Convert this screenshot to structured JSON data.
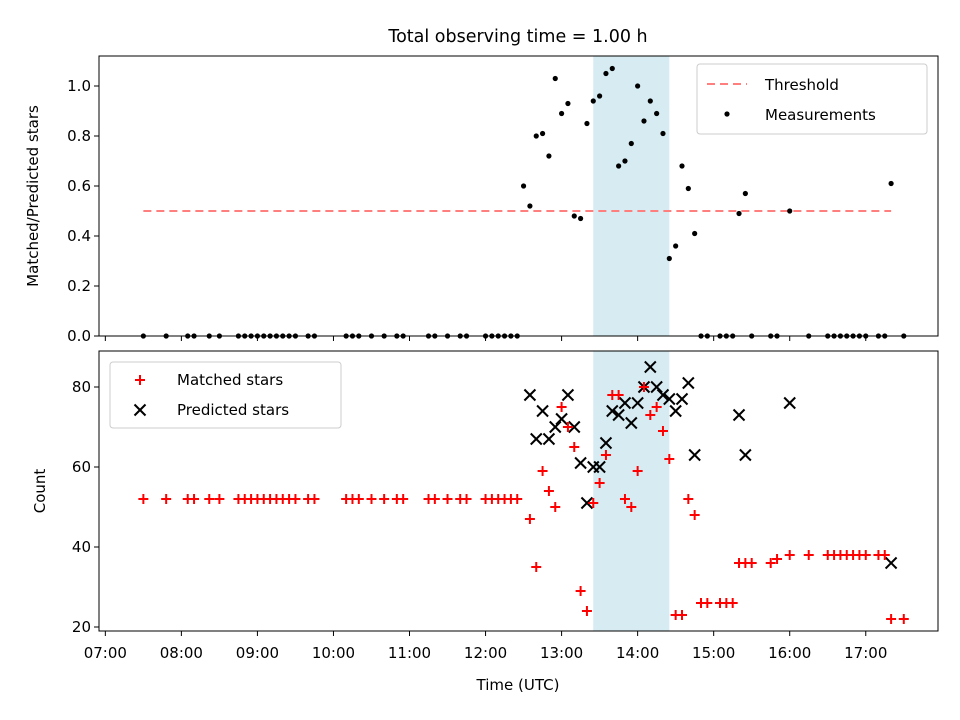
{
  "title": "Total observing time = 1.00 h",
  "colors": {
    "threshold": "#ff7f7f",
    "measurements": "#000000",
    "matched": "#ff0000",
    "predicted": "#000000",
    "highlight_band": "#add8e6"
  },
  "chart_data": [
    {
      "type": "scatter",
      "ylabel": "Matched/Predicted stars",
      "xlabel": "",
      "ylim": [
        0.0,
        1.12
      ],
      "yticks": [
        "0.0",
        "0.2",
        "0.4",
        "0.6",
        "0.8",
        "1.0"
      ],
      "legend": {
        "placement": "top-right",
        "entries": [
          "Threshold",
          "Measurements"
        ]
      },
      "highlight_span": [
        "13:25",
        "14:25"
      ],
      "threshold": {
        "name": "Threshold",
        "value": 0.5,
        "x_range": [
          "07:30",
          "17:20"
        ]
      },
      "series": [
        {
          "name": "Measurements",
          "x": [
            "07:30",
            "07:48",
            "08:05",
            "08:10",
            "08:22",
            "08:30",
            "08:45",
            "08:50",
            "08:55",
            "09:00",
            "09:05",
            "09:10",
            "09:15",
            "09:20",
            "09:25",
            "09:30",
            "09:40",
            "09:45",
            "10:10",
            "10:15",
            "10:20",
            "10:30",
            "10:40",
            "10:50",
            "10:55",
            "11:15",
            "11:20",
            "11:30",
            "11:40",
            "11:45",
            "12:00",
            "12:05",
            "12:10",
            "12:15",
            "12:20",
            "12:25",
            "12:30",
            "12:35",
            "12:40",
            "12:45",
            "12:50",
            "12:55",
            "13:00",
            "13:05",
            "13:10",
            "13:15",
            "13:20",
            "13:25",
            "13:30",
            "13:35",
            "13:40",
            "13:45",
            "13:50",
            "13:55",
            "14:00",
            "14:05",
            "14:10",
            "14:15",
            "14:20",
            "14:25",
            "14:30",
            "14:35",
            "14:40",
            "14:45",
            "14:50",
            "14:55",
            "15:05",
            "15:10",
            "15:15",
            "15:20",
            "15:25",
            "15:30",
            "15:45",
            "15:50",
            "16:00",
            "16:15",
            "16:30",
            "16:35",
            "16:40",
            "16:45",
            "16:50",
            "16:55",
            "17:00",
            "17:10",
            "17:15",
            "17:20",
            "17:30"
          ],
          "y": [
            0,
            0,
            0,
            0,
            0,
            0,
            0,
            0,
            0,
            0,
            0,
            0,
            0,
            0,
            0,
            0,
            0,
            0,
            0,
            0,
            0,
            0,
            0,
            0,
            0,
            0,
            0,
            0,
            0,
            0,
            0,
            0,
            0,
            0,
            0,
            0,
            0.6,
            0.52,
            0.8,
            0.81,
            0.72,
            1.03,
            0.89,
            0.93,
            0.48,
            0.47,
            0.85,
            0.94,
            0.96,
            1.05,
            1.07,
            0.68,
            0.7,
            0.77,
            1.0,
            0.86,
            0.94,
            0.89,
            0.81,
            0.31,
            0.36,
            0.68,
            0.59,
            0.41,
            0,
            0,
            0,
            0,
            0,
            0.49,
            0.57,
            0,
            0,
            0,
            0.5,
            0,
            0,
            0,
            0,
            0,
            0,
            0,
            0,
            0,
            0,
            0.61,
            0
          ]
        }
      ]
    },
    {
      "type": "scatter",
      "ylabel": "Count",
      "xlabel": "Time (UTC)",
      "ylim": [
        19,
        89
      ],
      "yticks": [
        "20",
        "40",
        "60",
        "80"
      ],
      "xticks": [
        "07:00",
        "08:00",
        "09:00",
        "10:00",
        "11:00",
        "12:00",
        "13:00",
        "14:00",
        "15:00",
        "16:00",
        "17:00"
      ],
      "legend": {
        "placement": "top-left",
        "entries": [
          "Matched stars",
          "Predicted stars"
        ]
      },
      "highlight_span": [
        "13:25",
        "14:25"
      ],
      "series": [
        {
          "name": "Matched stars",
          "marker": "plus",
          "x": [
            "07:30",
            "07:48",
            "08:05",
            "08:10",
            "08:22",
            "08:30",
            "08:45",
            "08:50",
            "08:55",
            "09:00",
            "09:05",
            "09:10",
            "09:15",
            "09:20",
            "09:25",
            "09:30",
            "09:40",
            "09:45",
            "10:10",
            "10:15",
            "10:20",
            "10:30",
            "10:40",
            "10:50",
            "10:55",
            "11:15",
            "11:20",
            "11:30",
            "11:40",
            "11:45",
            "12:00",
            "12:05",
            "12:10",
            "12:15",
            "12:20",
            "12:25",
            "12:35",
            "12:40",
            "12:45",
            "12:50",
            "12:55",
            "13:00",
            "13:05",
            "13:10",
            "13:15",
            "13:20",
            "13:25",
            "13:30",
            "13:35",
            "13:40",
            "13:45",
            "13:50",
            "13:55",
            "14:00",
            "14:05",
            "14:10",
            "14:15",
            "14:20",
            "14:25",
            "14:30",
            "14:35",
            "14:40",
            "14:45",
            "14:50",
            "14:55",
            "15:05",
            "15:10",
            "15:15",
            "15:20",
            "15:25",
            "15:30",
            "15:45",
            "15:50",
            "16:00",
            "16:15",
            "16:30",
            "16:35",
            "16:40",
            "16:45",
            "16:50",
            "16:55",
            "17:00",
            "17:10",
            "17:15",
            "17:20",
            "17:30"
          ],
          "y": [
            52,
            52,
            52,
            52,
            52,
            52,
            52,
            52,
            52,
            52,
            52,
            52,
            52,
            52,
            52,
            52,
            52,
            52,
            52,
            52,
            52,
            52,
            52,
            52,
            52,
            52,
            52,
            52,
            52,
            52,
            52,
            52,
            52,
            52,
            52,
            52,
            47,
            35,
            59,
            54,
            50,
            75,
            70,
            65,
            29,
            24,
            51,
            56,
            63,
            78,
            78,
            52,
            50,
            59,
            80,
            73,
            75,
            69,
            62,
            23,
            23,
            52,
            48,
            26,
            26,
            26,
            26,
            26,
            36,
            36,
            36,
            36,
            37,
            38,
            38,
            38,
            38,
            38,
            38,
            38,
            38,
            38,
            38,
            38,
            22,
            22
          ]
        },
        {
          "name": "Predicted stars",
          "marker": "x",
          "x": [
            "12:35",
            "12:40",
            "12:45",
            "12:50",
            "12:55",
            "13:00",
            "13:05",
            "13:10",
            "13:15",
            "13:20",
            "13:25",
            "13:30",
            "13:35",
            "13:40",
            "13:45",
            "13:50",
            "13:55",
            "14:00",
            "14:05",
            "14:10",
            "14:15",
            "14:20",
            "14:25",
            "14:30",
            "14:35",
            "14:40",
            "14:45",
            "15:20",
            "15:25",
            "16:00",
            "17:20"
          ],
          "y": [
            78,
            67,
            74,
            67,
            70,
            72,
            78,
            70,
            61,
            51,
            60,
            60,
            66,
            74,
            73,
            76,
            71,
            76,
            80,
            85,
            80,
            78,
            77,
            74,
            77,
            81,
            63,
            73,
            63,
            76,
            36
          ]
        }
      ]
    }
  ]
}
